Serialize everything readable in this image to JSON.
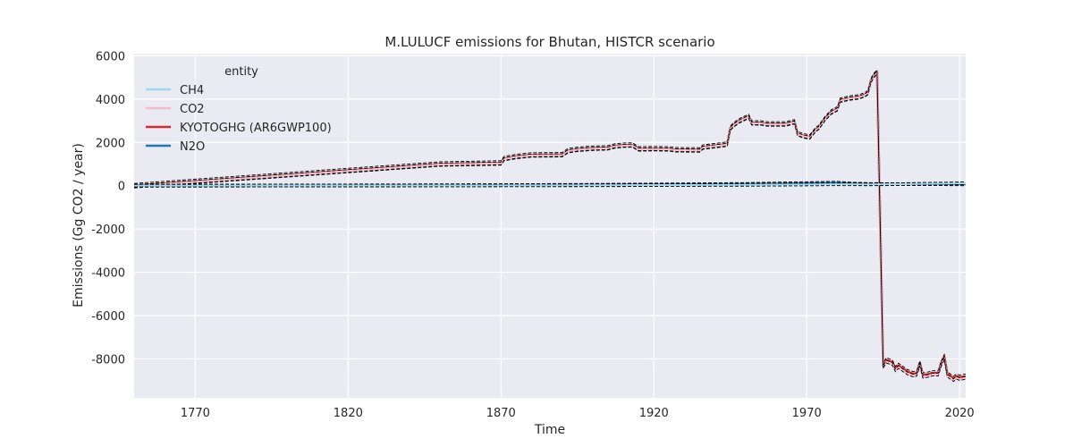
{
  "chart_data": {
    "type": "line",
    "title": "M.LULUCF emissions for Bhutan, HISTCR scenario",
    "xlabel": "Time",
    "ylabel": "Emissions (Gg CO2 / year)",
    "xlim": [
      1750,
      2022
    ],
    "ylim": [
      -9800,
      6100
    ],
    "x_ticks": [
      1770,
      1820,
      1870,
      1920,
      1970,
      2020
    ],
    "y_ticks": [
      6000,
      4000,
      2000,
      0,
      -2000,
      -4000,
      -6000,
      -8000
    ],
    "grid": true,
    "legend": {
      "title": "entity",
      "placement": "top-left",
      "entries": [
        {
          "name": "CH4",
          "color": "#9fd8ec"
        },
        {
          "name": "CO2",
          "color": "#f4bccc"
        },
        {
          "name": "KYOTOGHG (AR6GWP100)",
          "color": "#d42a2a"
        },
        {
          "name": "N2O",
          "color": "#1f77b4"
        }
      ]
    },
    "series": [
      {
        "name": "KYOTOGHG (AR6GWP100)",
        "color": "#d42a2a",
        "points": [
          [
            1750,
            0
          ],
          [
            1850,
            1000
          ],
          [
            1870,
            1050
          ],
          [
            1871,
            1250
          ],
          [
            1875,
            1350
          ],
          [
            1880,
            1420
          ],
          [
            1890,
            1430
          ],
          [
            1892,
            1620
          ],
          [
            1895,
            1680
          ],
          [
            1900,
            1730
          ],
          [
            1905,
            1750
          ],
          [
            1907,
            1830
          ],
          [
            1910,
            1870
          ],
          [
            1913,
            1880
          ],
          [
            1915,
            1700
          ],
          [
            1920,
            1710
          ],
          [
            1925,
            1700
          ],
          [
            1927,
            1660
          ],
          [
            1935,
            1650
          ],
          [
            1936,
            1780
          ],
          [
            1940,
            1850
          ],
          [
            1944,
            1920
          ],
          [
            1945,
            2650
          ],
          [
            1946,
            2800
          ],
          [
            1948,
            3000
          ],
          [
            1951,
            3200
          ],
          [
            1952,
            2900
          ],
          [
            1955,
            2900
          ],
          [
            1957,
            2850
          ],
          [
            1960,
            2850
          ],
          [
            1963,
            2850
          ],
          [
            1966,
            2950
          ],
          [
            1967,
            2400
          ],
          [
            1969,
            2300
          ],
          [
            1971,
            2250
          ],
          [
            1973,
            2600
          ],
          [
            1974,
            2700
          ],
          [
            1976,
            3100
          ],
          [
            1978,
            3400
          ],
          [
            1980,
            3550
          ],
          [
            1981,
            3950
          ],
          [
            1984,
            4050
          ],
          [
            1987,
            4100
          ],
          [
            1989,
            4200
          ],
          [
            1990,
            4300
          ],
          [
            1991,
            4850
          ],
          [
            1992,
            5100
          ],
          [
            1993,
            5250
          ],
          [
            1995,
            -8300
          ],
          [
            1996,
            -8050
          ],
          [
            1998,
            -8150
          ],
          [
            1999,
            -8450
          ],
          [
            2000,
            -8300
          ],
          [
            2003,
            -8600
          ],
          [
            2005,
            -8700
          ],
          [
            2006,
            -8650
          ],
          [
            2007,
            -8200
          ],
          [
            2008,
            -8750
          ],
          [
            2010,
            -8700
          ],
          [
            2011,
            -8650
          ],
          [
            2013,
            -8650
          ],
          [
            2014,
            -8200
          ],
          [
            2015,
            -7900
          ],
          [
            2016,
            -8700
          ],
          [
            2018,
            -8900
          ],
          [
            2019,
            -8800
          ],
          [
            2020,
            -8850
          ],
          [
            2022,
            -8800
          ]
        ]
      },
      {
        "name": "CO2",
        "color": "#f4bccc",
        "points": [
          [
            1750,
            -20
          ],
          [
            1850,
            980
          ],
          [
            1870,
            1030
          ],
          [
            1871,
            1230
          ],
          [
            1875,
            1330
          ],
          [
            1880,
            1400
          ],
          [
            1890,
            1410
          ],
          [
            1892,
            1600
          ],
          [
            1895,
            1660
          ],
          [
            1900,
            1710
          ],
          [
            1905,
            1730
          ],
          [
            1907,
            1810
          ],
          [
            1910,
            1850
          ],
          [
            1913,
            1860
          ],
          [
            1915,
            1680
          ],
          [
            1920,
            1690
          ],
          [
            1925,
            1680
          ],
          [
            1927,
            1640
          ],
          [
            1935,
            1630
          ],
          [
            1936,
            1760
          ],
          [
            1940,
            1830
          ],
          [
            1944,
            1900
          ],
          [
            1945,
            2630
          ],
          [
            1946,
            2780
          ],
          [
            1948,
            2980
          ],
          [
            1951,
            3180
          ],
          [
            1952,
            2880
          ],
          [
            1955,
            2880
          ],
          [
            1957,
            2830
          ],
          [
            1960,
            2830
          ],
          [
            1963,
            2830
          ],
          [
            1966,
            2930
          ],
          [
            1967,
            2380
          ],
          [
            1969,
            2280
          ],
          [
            1971,
            2230
          ],
          [
            1973,
            2580
          ],
          [
            1974,
            2680
          ],
          [
            1976,
            3080
          ],
          [
            1978,
            3380
          ],
          [
            1980,
            3530
          ],
          [
            1981,
            3930
          ],
          [
            1984,
            4030
          ],
          [
            1987,
            4080
          ],
          [
            1989,
            4180
          ],
          [
            1990,
            4280
          ],
          [
            1991,
            4830
          ],
          [
            1992,
            5080
          ],
          [
            1993,
            5230
          ],
          [
            1995,
            -8380
          ],
          [
            1996,
            -8130
          ],
          [
            1998,
            -8230
          ],
          [
            1999,
            -8530
          ],
          [
            2000,
            -8380
          ],
          [
            2003,
            -8680
          ],
          [
            2005,
            -8780
          ],
          [
            2006,
            -8730
          ],
          [
            2007,
            -8280
          ],
          [
            2008,
            -8830
          ],
          [
            2010,
            -8780
          ],
          [
            2011,
            -8730
          ],
          [
            2013,
            -8730
          ],
          [
            2014,
            -8280
          ],
          [
            2015,
            -7980
          ],
          [
            2016,
            -8780
          ],
          [
            2018,
            -8980
          ],
          [
            2019,
            -8880
          ],
          [
            2020,
            -8930
          ],
          [
            2022,
            -8880
          ]
        ]
      },
      {
        "name": "N2O",
        "color": "#1f77b4",
        "points": [
          [
            1750,
            0
          ],
          [
            1800,
            8
          ],
          [
            1850,
            20
          ],
          [
            1900,
            40
          ],
          [
            1950,
            80
          ],
          [
            1965,
            110
          ],
          [
            1975,
            130
          ],
          [
            1980,
            140
          ],
          [
            1985,
            95
          ],
          [
            1990,
            80
          ],
          [
            2000,
            70
          ],
          [
            2010,
            70
          ],
          [
            2022,
            60
          ]
        ]
      },
      {
        "name": "CH4",
        "color": "#9fd8ec",
        "points": [
          [
            1750,
            0
          ],
          [
            1850,
            10
          ],
          [
            1900,
            20
          ],
          [
            1950,
            40
          ],
          [
            1970,
            55
          ],
          [
            1980,
            65
          ],
          [
            1990,
            60
          ],
          [
            2000,
            70
          ],
          [
            2010,
            90
          ],
          [
            2022,
            110
          ]
        ]
      }
    ]
  }
}
